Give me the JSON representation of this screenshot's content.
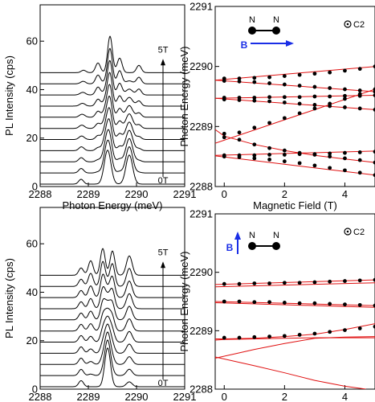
{
  "chart_data": [
    {
      "id": "top-left",
      "type": "line",
      "xlabel": "Photon Energy (meV)",
      "ylabel": "PL Intensity (cps)",
      "xlim": [
        2288,
        2291
      ],
      "ylim": [
        0,
        75
      ],
      "xticks": [
        2288,
        2289,
        2290,
        2291
      ],
      "yticks": [
        0,
        20,
        40,
        60
      ],
      "arrow_start_label": "0T",
      "arrow_end_label": "5T",
      "spectra": {
        "count": 11,
        "offset_step": 4.6,
        "field_step_T": 0.5,
        "peaks_0T": [
          {
            "center": 2288.85,
            "amp": 2.0,
            "width": 0.05
          },
          {
            "center": 2289.4,
            "amp": 14.0,
            "width": 0.07
          },
          {
            "center": 2289.85,
            "amp": 12.0,
            "width": 0.07
          }
        ],
        "peaks_5T": [
          {
            "center": 2288.9,
            "amp": 1.0,
            "width": 0.05
          },
          {
            "center": 2289.2,
            "amp": 4.0,
            "width": 0.05
          },
          {
            "center": 2289.45,
            "amp": 15.0,
            "width": 0.05
          },
          {
            "center": 2289.65,
            "amp": 6.0,
            "width": 0.05
          },
          {
            "center": 2290.05,
            "amp": 3.0,
            "width": 0.05
          }
        ]
      }
    },
    {
      "id": "top-right",
      "type": "scatter",
      "xlabel": "Magnetic Field (T)",
      "ylabel": "Photon Energy (meV)",
      "xlim": [
        -0.3,
        5
      ],
      "ylim": [
        2288,
        2291
      ],
      "xticks": [
        0,
        2,
        4
      ],
      "yticks": [
        2288,
        2289,
        2290,
        2291
      ],
      "inset": {
        "atom_label": "N",
        "field_label": "B",
        "field_direction": "horizontal",
        "symmetry_label": "C2"
      },
      "series": [
        {
          "points": [
            [
              0,
              2289.8
            ],
            [
              0.5,
              2289.8
            ],
            [
              1,
              2289.81
            ],
            [
              1.5,
              2289.82
            ],
            [
              2,
              2289.84
            ],
            [
              2.5,
              2289.86
            ],
            [
              3,
              2289.88
            ],
            [
              3.5,
              2289.9
            ],
            [
              4,
              2289.93
            ],
            [
              4.5,
              2289.96
            ],
            [
              5,
              2290.0
            ]
          ]
        },
        {
          "points": [
            [
              0,
              2289.76
            ],
            [
              0.5,
              2289.75
            ],
            [
              1,
              2289.74
            ],
            [
              1.5,
              2289.72
            ],
            [
              2,
              2289.7
            ],
            [
              2.5,
              2289.68
            ],
            [
              3,
              2289.66
            ],
            [
              3.5,
              2289.64
            ],
            [
              4,
              2289.62
            ],
            [
              4.5,
              2289.6
            ],
            [
              5,
              2289.58
            ]
          ]
        },
        {
          "points": [
            [
              0,
              2289.48
            ],
            [
              0.5,
              2289.48
            ],
            [
              1,
              2289.48
            ],
            [
              1.5,
              2289.49
            ],
            [
              2,
              2289.49
            ],
            [
              2.5,
              2289.49
            ],
            [
              3,
              2289.5
            ],
            [
              3.5,
              2289.5
            ],
            [
              4,
              2289.51
            ],
            [
              4.5,
              2289.51
            ],
            [
              5,
              2289.52
            ]
          ]
        },
        {
          "points": [
            [
              0,
              2289.45
            ],
            [
              0.5,
              2289.44
            ],
            [
              1,
              2289.43
            ],
            [
              1.5,
              2289.42
            ],
            [
              2,
              2289.4
            ],
            [
              2.5,
              2289.38
            ],
            [
              3,
              2289.36
            ],
            [
              3.5,
              2289.34
            ],
            [
              4,
              2289.32
            ],
            [
              4.5,
              2289.3
            ],
            [
              5,
              2289.28
            ]
          ]
        },
        {
          "points": [
            [
              0,
              2288.88
            ],
            [
              0.5,
              2288.78
            ],
            [
              1,
              2288.7
            ],
            [
              1.5,
              2288.64
            ],
            [
              2,
              2288.6
            ],
            [
              2.5,
              2288.56
            ],
            [
              3,
              2288.53
            ],
            [
              3.5,
              2288.5
            ],
            [
              4,
              2288.47
            ],
            [
              4.5,
              2288.44
            ],
            [
              5,
              2288.4
            ]
          ]
        },
        {
          "points": [
            [
              0,
              2288.82
            ],
            [
              0.5,
              2288.9
            ],
            [
              1,
              2288.98
            ],
            [
              1.5,
              2289.06
            ],
            [
              2,
              2289.14
            ],
            [
              2.5,
              2289.22
            ],
            [
              3,
              2289.3
            ],
            [
              3.5,
              2289.38
            ],
            [
              4,
              2289.46
            ],
            [
              4.5,
              2289.54
            ],
            [
              5,
              2289.62
            ]
          ]
        },
        {
          "points": [
            [
              0,
              2288.52
            ],
            [
              0.5,
              2288.52
            ],
            [
              1,
              2288.52
            ],
            [
              1.5,
              2288.53
            ],
            [
              2,
              2288.53
            ],
            [
              2.5,
              2288.54
            ],
            [
              3,
              2288.54
            ],
            [
              3.5,
              2288.55
            ],
            [
              4,
              2288.56
            ],
            [
              4.5,
              2288.57
            ],
            [
              5,
              2288.58
            ]
          ]
        },
        {
          "points": [
            [
              0,
              2288.5
            ],
            [
              0.5,
              2288.49
            ],
            [
              1,
              2288.47
            ],
            [
              1.5,
              2288.45
            ],
            [
              2,
              2288.42
            ],
            [
              2.5,
              2288.39
            ],
            [
              3,
              2288.35
            ],
            [
              3.5,
              2288.31
            ],
            [
              4,
              2288.27
            ],
            [
              4.5,
              2288.23
            ],
            [
              5,
              2288.19
            ]
          ]
        }
      ],
      "fits": [
        {
          "points": [
            [
              -0.3,
              2289.77
            ],
            [
              5,
              2290.0
            ]
          ]
        },
        {
          "points": [
            [
              -0.3,
              2289.77
            ],
            [
              5,
              2289.58
            ]
          ]
        },
        {
          "points": [
            [
              -0.3,
              2289.47
            ],
            [
              5,
              2289.52
            ]
          ]
        },
        {
          "points": [
            [
              -0.3,
              2289.47
            ],
            [
              5,
              2289.28
            ]
          ]
        },
        {
          "points": [
            [
              -0.3,
              2288.95
            ],
            [
              0,
              2288.84
            ],
            [
              1,
              2288.7
            ],
            [
              2,
              2288.6
            ],
            [
              3,
              2288.52
            ],
            [
              4,
              2288.46
            ],
            [
              5,
              2288.4
            ]
          ]
        },
        {
          "points": [
            [
              -0.3,
              2288.72
            ],
            [
              5,
              2289.62
            ]
          ]
        },
        {
          "points": [
            [
              -0.3,
              2288.52
            ],
            [
              5,
              2288.59
            ]
          ]
        },
        {
          "points": [
            [
              -0.3,
              2288.51
            ],
            [
              5,
              2288.19
            ]
          ]
        }
      ]
    },
    {
      "id": "bottom-left",
      "type": "line",
      "xlabel": "Photon Energy (meV)",
      "ylabel": "PL Intensity (cps)",
      "xlim": [
        2288,
        2291
      ],
      "ylim": [
        0,
        75
      ],
      "xticks": [
        2288,
        2289,
        2290,
        2291
      ],
      "yticks": [
        0,
        20,
        40,
        60
      ],
      "arrow_start_label": "0T",
      "arrow_end_label": "5T",
      "spectra": {
        "count": 11,
        "offset_step": 4.6,
        "field_step_T": 0.5,
        "peaks_0T": [
          {
            "center": 2288.85,
            "amp": 2.5,
            "width": 0.05
          },
          {
            "center": 2289.4,
            "amp": 16.0,
            "width": 0.06
          },
          {
            "center": 2289.85,
            "amp": 2.0,
            "width": 0.06
          }
        ],
        "peaks_5T": [
          {
            "center": 2288.85,
            "amp": 3.0,
            "width": 0.05
          },
          {
            "center": 2289.05,
            "amp": 6.0,
            "width": 0.05
          },
          {
            "center": 2289.3,
            "amp": 11.0,
            "width": 0.05
          },
          {
            "center": 2289.5,
            "amp": 10.0,
            "width": 0.05
          },
          {
            "center": 2289.85,
            "amp": 8.0,
            "width": 0.06
          }
        ]
      }
    },
    {
      "id": "bottom-right",
      "type": "scatter",
      "xlabel": "Magnetic Field (T)",
      "ylabel": "Photon Energy (meV)",
      "xlim": [
        -0.3,
        5
      ],
      "ylim": [
        2288,
        2291
      ],
      "xticks": [
        0,
        2,
        4
      ],
      "yticks": [
        2288,
        2289,
        2290,
        2291
      ],
      "inset": {
        "atom_label": "N",
        "field_label": "B",
        "field_direction": "vertical",
        "symmetry_label": "C2"
      },
      "series": [
        {
          "points": [
            [
              0,
              2289.8
            ],
            [
              0.5,
              2289.8
            ],
            [
              1,
              2289.81
            ],
            [
              1.5,
              2289.81
            ],
            [
              2,
              2289.82
            ],
            [
              2.5,
              2289.82
            ],
            [
              3,
              2289.83
            ],
            [
              3.5,
              2289.84
            ],
            [
              4,
              2289.85
            ],
            [
              4.5,
              2289.86
            ],
            [
              5,
              2289.87
            ]
          ]
        },
        {
          "points": [
            [
              0,
              2289.5
            ],
            [
              0.5,
              2289.5
            ],
            [
              1,
              2289.49
            ],
            [
              1.5,
              2289.49
            ],
            [
              2,
              2289.48
            ],
            [
              2.5,
              2289.47
            ],
            [
              3,
              2289.47
            ],
            [
              3.5,
              2289.46
            ],
            [
              4,
              2289.45
            ],
            [
              4.5,
              2289.44
            ],
            [
              5,
              2289.43
            ]
          ]
        },
        {
          "points": [
            [
              0,
              2288.88
            ],
            [
              0.5,
              2288.88
            ],
            [
              1,
              2288.89
            ],
            [
              1.5,
              2288.9
            ],
            [
              2,
              2288.91
            ],
            [
              2.5,
              2288.93
            ],
            [
              3,
              2288.95
            ],
            [
              3.5,
              2288.98
            ],
            [
              4,
              2289.01
            ],
            [
              4.5,
              2289.04
            ],
            [
              5,
              2289.07
            ]
          ]
        }
      ],
      "fits": [
        {
          "points": [
            [
              -0.3,
              2289.79
            ],
            [
              5,
              2289.87
            ]
          ]
        },
        {
          "points": [
            [
              -0.3,
              2289.75
            ],
            [
              5,
              2289.82
            ]
          ]
        },
        {
          "points": [
            [
              -0.3,
              2289.5
            ],
            [
              5,
              2289.43
            ]
          ]
        },
        {
          "points": [
            [
              -0.3,
              2289.48
            ],
            [
              5,
              2289.4
            ]
          ]
        },
        {
          "points": [
            [
              -0.3,
              2288.86
            ],
            [
              0,
              2288.86
            ],
            [
              1,
              2288.87
            ],
            [
              2,
              2288.9
            ],
            [
              3,
              2288.94
            ],
            [
              4,
              2289.02
            ],
            [
              5,
              2289.12
            ]
          ]
        },
        {
          "points": [
            [
              -0.3,
              2288.84
            ],
            [
              0,
              2288.85
            ],
            [
              1,
              2288.86
            ],
            [
              2,
              2288.87
            ],
            [
              3,
              2288.88
            ],
            [
              4,
              2288.88
            ],
            [
              5,
              2288.88
            ]
          ]
        },
        {
          "points": [
            [
              -0.3,
              2288.55
            ],
            [
              1,
              2288.4
            ],
            [
              2,
              2288.28
            ],
            [
              3,
              2288.15
            ],
            [
              4,
              2288.05
            ],
            [
              4.7,
              2288.0
            ]
          ]
        },
        {
          "points": [
            [
              -0.3,
              2288.53
            ],
            [
              0.5,
              2288.62
            ],
            [
              1,
              2288.68
            ],
            [
              2,
              2288.78
            ],
            [
              3,
              2288.87
            ],
            [
              4,
              2288.89
            ],
            [
              5,
              2288.9
            ]
          ]
        }
      ]
    }
  ]
}
